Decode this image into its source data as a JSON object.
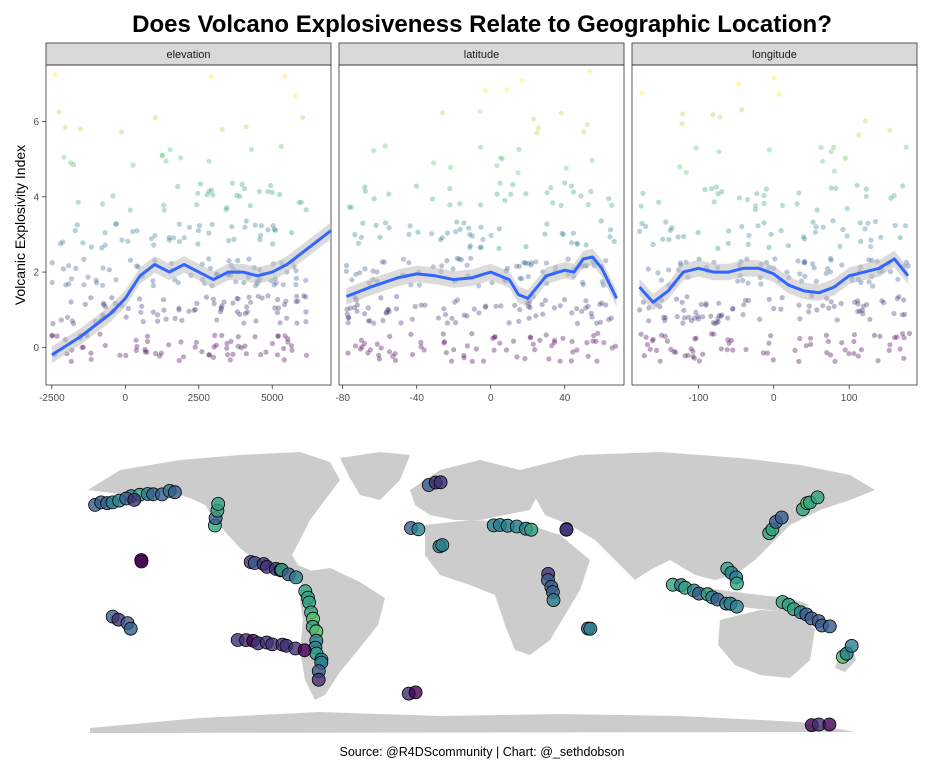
{
  "title": "Does Volcano Explosiveness Relate to Geographic Location?",
  "caption": "Source: @R4DScommunity | Chart: @_sethdobson",
  "colors": {
    "smooth": "#3366ff",
    "ribbon": "#bdbdbd",
    "strip_fill": "#d9d9d9",
    "land": "#cccccc",
    "viridis": [
      "#440154",
      "#3b528b",
      "#21908c",
      "#5dc963",
      "#fde725"
    ]
  },
  "chart_data": [
    {
      "type": "scatter",
      "facet": "elevation",
      "ylabel": "Volcanic Explosivity Index",
      "xlim": [
        -2700,
        7000
      ],
      "ylim": [
        -1,
        7.5
      ],
      "x_ticks": [
        -2500,
        0,
        2500,
        5000
      ],
      "x_tick_labels": [
        "-2500",
        "0",
        "2500",
        "5000"
      ],
      "y_ticks": [
        0,
        2,
        4,
        6
      ],
      "y_tick_labels": [
        "0",
        "2",
        "4",
        "6"
      ],
      "vei_levels": [
        0,
        1,
        2,
        3,
        4,
        5,
        6,
        7
      ],
      "x_extent": [
        -2500,
        6200
      ],
      "smooth": {
        "x": [
          -2500,
          -1500,
          -500,
          0,
          500,
          1000,
          1500,
          2000,
          2500,
          3000,
          3500,
          4000,
          4500,
          5000,
          5500,
          6000,
          6500,
          7000
        ],
        "y": [
          -0.2,
          0.3,
          0.9,
          1.3,
          1.9,
          2.2,
          2.0,
          2.2,
          2.0,
          1.8,
          2.0,
          2.0,
          1.9,
          2.0,
          2.2,
          2.5,
          2.8,
          3.1
        ]
      },
      "grid": false
    },
    {
      "type": "scatter",
      "facet": "latitude",
      "xlim": [
        -82,
        72
      ],
      "ylim": [
        -1,
        7.5
      ],
      "x_ticks": [
        -80,
        -40,
        0,
        40
      ],
      "x_tick_labels": [
        "-80",
        "-40",
        "0",
        "40"
      ],
      "vei_levels": [
        0,
        1,
        2,
        3,
        4,
        5,
        6,
        7
      ],
      "x_extent": [
        -78,
        68
      ],
      "smooth": {
        "x": [
          -78,
          -65,
          -50,
          -40,
          -30,
          -20,
          -10,
          0,
          10,
          15,
          20,
          30,
          40,
          45,
          50,
          55,
          60,
          68
        ],
        "y": [
          1.35,
          1.6,
          1.85,
          1.95,
          1.9,
          1.8,
          1.85,
          2.0,
          1.8,
          1.4,
          1.3,
          1.9,
          2.05,
          2.0,
          2.35,
          2.4,
          2.1,
          1.3
        ]
      },
      "grid": false
    },
    {
      "type": "scatter",
      "facet": "longitude",
      "xlim": [
        -188,
        190
      ],
      "ylim": [
        -1,
        7.5
      ],
      "x_ticks": [
        -100,
        0,
        100
      ],
      "x_tick_labels": [
        "-100",
        "0",
        "100"
      ],
      "vei_levels": [
        0,
        1,
        2,
        3,
        4,
        5,
        6,
        7
      ],
      "x_extent": [
        -178,
        180
      ],
      "smooth": {
        "x": [
          -178,
          -160,
          -140,
          -120,
          -100,
          -80,
          -60,
          -40,
          -20,
          0,
          20,
          40,
          60,
          80,
          100,
          120,
          140,
          160,
          178
        ],
        "y": [
          1.6,
          1.2,
          1.5,
          2.0,
          2.1,
          2.0,
          2.0,
          2.1,
          2.1,
          1.95,
          1.65,
          1.5,
          1.45,
          1.6,
          1.9,
          2.0,
          2.1,
          2.35,
          1.9
        ]
      },
      "grid": false
    }
  ],
  "facets": [
    {
      "label": "elevation"
    },
    {
      "label": "latitude"
    },
    {
      "label": "longitude"
    }
  ],
  "map": {
    "type": "map",
    "volcano_clusters": [
      {
        "lon": -160,
        "lat": 56,
        "lon2": -140,
        "lat2": 60,
        "vei": 3
      },
      {
        "lon": -178,
        "lat": 52,
        "lon2": -160,
        "lat2": 55,
        "vei": 2
      },
      {
        "lon": -122,
        "lat": 40,
        "lon2": -120,
        "lat2": 52,
        "vei": 3
      },
      {
        "lon": -105,
        "lat": 19,
        "lon2": -90,
        "lat2": 14,
        "vei": 2
      },
      {
        "lon": -90,
        "lat": 13,
        "lon2": -83,
        "lat2": 10,
        "vei": 3
      },
      {
        "lon": -78,
        "lat": 2,
        "lon2": -72,
        "lat2": -40,
        "vei": 4
      },
      {
        "lon": -72,
        "lat": -40,
        "lon2": -73,
        "lat2": -50,
        "vei": 2
      },
      {
        "lon": -155,
        "lat": 19,
        "lon2": -155,
        "lat2": 19,
        "vei": 0
      },
      {
        "lon": 140,
        "lat": 35,
        "lon2": 145,
        "lat2": 44,
        "vei": 3
      },
      {
        "lon": 155,
        "lat": 50,
        "lon2": 162,
        "lat2": 56,
        "vei": 4
      },
      {
        "lon": 120,
        "lat": 15,
        "lon2": 125,
        "lat2": 5,
        "vei": 3
      },
      {
        "lon": 95,
        "lat": 5,
        "lon2": 125,
        "lat2": -8,
        "vei": 3
      },
      {
        "lon": 145,
        "lat": -5,
        "lon2": 168,
        "lat2": -20,
        "vei": 3
      },
      {
        "lon": 175,
        "lat": -38,
        "lon2": 178,
        "lat2": -32,
        "vei": 4
      },
      {
        "lon": 10,
        "lat": 40,
        "lon2": 28,
        "lat2": 38,
        "vei": 3
      },
      {
        "lon": 36,
        "lat": 12,
        "lon2": 38,
        "lat2": -4,
        "vei": 2
      },
      {
        "lon": -20,
        "lat": 64,
        "lon2": -15,
        "lat2": 65,
        "vei": 1
      },
      {
        "lon": -28,
        "lat": 38,
        "lon2": -25,
        "lat2": 38,
        "vei": 2
      },
      {
        "lon": -16,
        "lat": 28,
        "lon2": -14,
        "lat2": 28,
        "vei": 2
      },
      {
        "lon": 45,
        "lat": 38,
        "lon2": 45,
        "lat2": 38,
        "vei": 1
      },
      {
        "lon": 55,
        "lat": -21,
        "lon2": 55,
        "lat2": -21,
        "vei": 2
      },
      {
        "lon": 160,
        "lat": -77,
        "lon2": 167,
        "lat2": -77,
        "vei": 0
      },
      {
        "lon": -170,
        "lat": -14,
        "lon2": -160,
        "lat2": -20,
        "vei": 2
      },
      {
        "lon": -110,
        "lat": -27,
        "lon2": -80,
        "lat2": -33,
        "vei": 1
      },
      {
        "lon": -30,
        "lat": -58,
        "lon2": -26,
        "lat2": -58,
        "vei": 0
      }
    ]
  }
}
